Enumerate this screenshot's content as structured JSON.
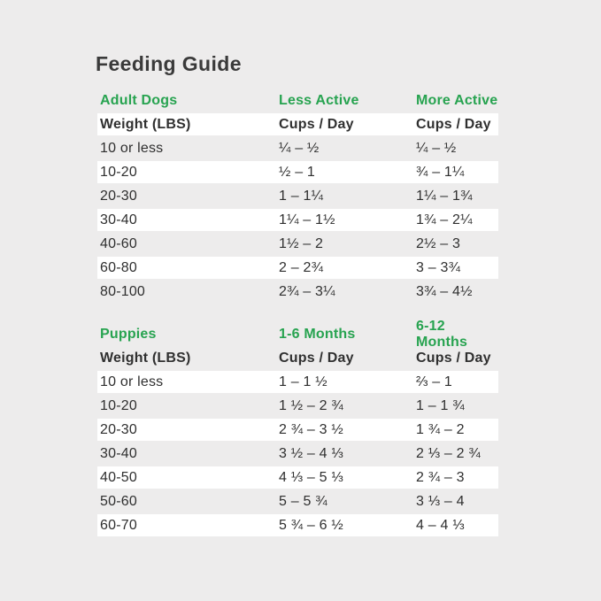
{
  "title": "Feeding Guide",
  "colors": {
    "accent_green": "#27a350",
    "background": "#edecec",
    "row_stripe": "#ffffff",
    "text": "#2f2f2f"
  },
  "chart_data": [
    {
      "type": "table",
      "section_label": "Adult Dogs",
      "activity_labels": [
        "Less Active",
        "More Active"
      ],
      "header": {
        "c1": "Weight (LBS)",
        "c2": "Cups / Day",
        "c3": "Cups / Day"
      },
      "rows": [
        {
          "c1": "10 or less",
          "c2": "¼ – ½",
          "c3": "¼ – ½"
        },
        {
          "c1": "10-20",
          "c2": "½ – 1",
          "c3": "¾ – 1¼"
        },
        {
          "c1": "20-30",
          "c2": "1 – 1¼",
          "c3": "1¼ – 1¾"
        },
        {
          "c1": "30-40",
          "c2": "1¼ – 1½",
          "c3": "1¾ – 2¼"
        },
        {
          "c1": "40-60",
          "c2": "1½ – 2",
          "c3": "2½ – 3"
        },
        {
          "c1": "60-80",
          "c2": "2 – 2¾",
          "c3": "3 – 3¾"
        },
        {
          "c1": "80-100",
          "c2": "2¾ – 3¼",
          "c3": "3¾ – 4½"
        }
      ]
    },
    {
      "type": "table",
      "section_label": "Puppies",
      "activity_labels": [
        "1-6 Months",
        "6-12 Months"
      ],
      "header": {
        "c1": "Weight (LBS)",
        "c2": "Cups / Day",
        "c3": "Cups / Day"
      },
      "rows": [
        {
          "c1": "10 or less",
          "c2": "1 – 1 ½",
          "c3": "⅔ – 1"
        },
        {
          "c1": "10-20",
          "c2": "1 ½ – 2 ¾",
          "c3": "1 – 1 ¾"
        },
        {
          "c1": "20-30",
          "c2": "2 ¾ – 3 ½",
          "c3": "1 ¾ – 2"
        },
        {
          "c1": "30-40",
          "c2": "3 ½ – 4 ⅓",
          "c3": "2 ⅓ – 2 ¾"
        },
        {
          "c1": "40-50",
          "c2": "4 ⅓ – 5 ⅓",
          "c3": "2 ¾ – 3"
        },
        {
          "c1": "50-60",
          "c2": "5 – 5 ¾",
          "c3": "3 ⅓ – 4"
        },
        {
          "c1": "60-70",
          "c2": "5 ¾ – 6 ½",
          "c3": "4 – 4 ⅓"
        }
      ]
    }
  ]
}
